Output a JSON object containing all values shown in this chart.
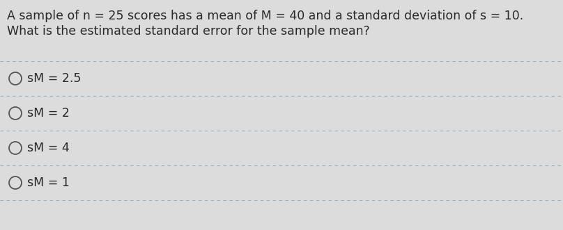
{
  "question_line1": "A sample of n = 25 scores has a mean of M = 40 and a standard deviation of s = 10.",
  "question_line2": "What is the estimated standard error for the sample mean?",
  "options": [
    "sM = 2.5",
    "sM = 2",
    "sM = 4",
    "sM = 1"
  ],
  "bg_color": "#dcdcdc",
  "text_color": "#2a2a2a",
  "divider_color": "#9ab0c0",
  "circle_edge_color": "#555555",
  "question_fontsize": 12.5,
  "option_fontsize": 12.5,
  "fig_width": 8.08,
  "fig_height": 3.31,
  "dpi": 100
}
